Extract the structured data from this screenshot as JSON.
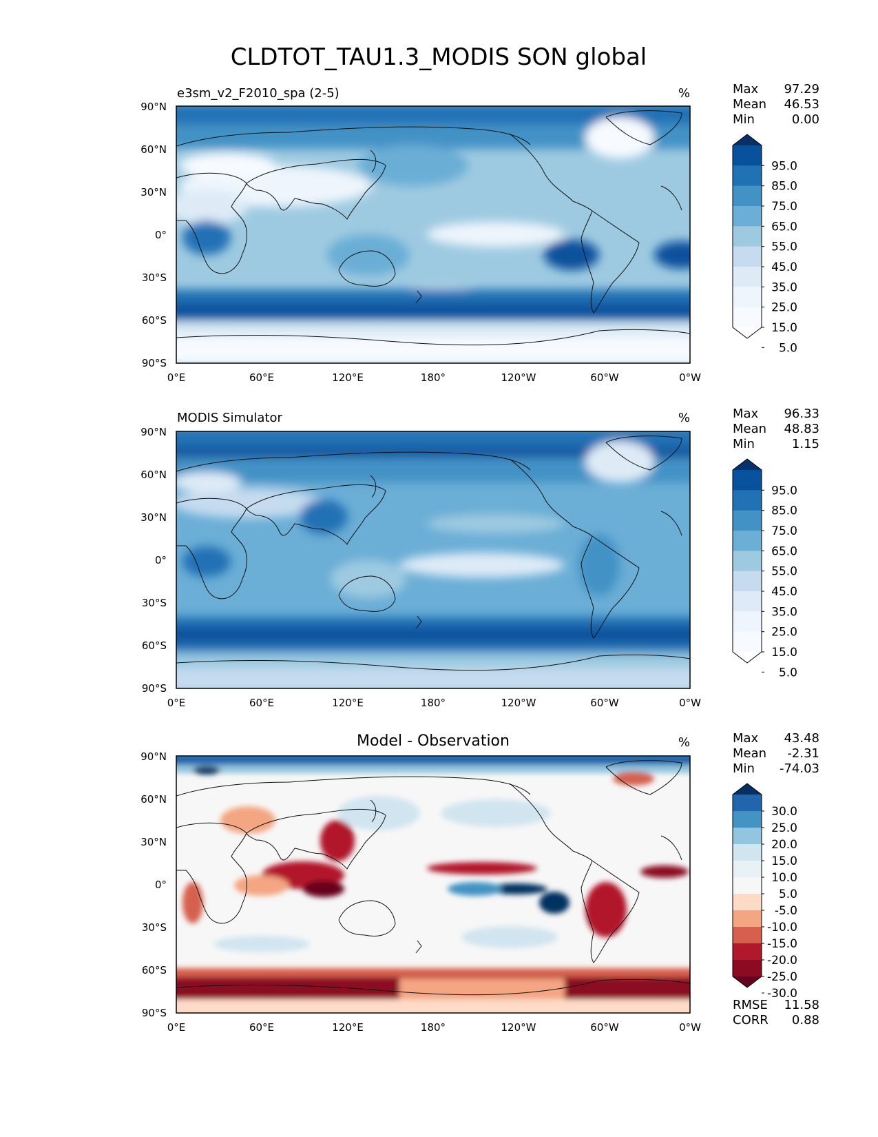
{
  "title": "CLDTOT_TAU1.3_MODIS SON global",
  "axes": {
    "lat_ticks": [
      "90°N",
      "60°N",
      "30°N",
      "0°",
      "30°S",
      "60°S",
      "90°S"
    ],
    "lon_ticks": [
      "0°E",
      "60°E",
      "120°E",
      "180°",
      "120°W",
      "60°W",
      "0°W"
    ]
  },
  "panels": [
    {
      "id": "model",
      "title_left": "e3sm_v2_F2010_spa (2-5)",
      "title_center": "",
      "units": "%",
      "stats": [
        {
          "label": "Max",
          "value": "97.29"
        },
        {
          "label": "Mean",
          "value": "46.53"
        },
        {
          "label": "Min",
          "value": "0.00"
        }
      ],
      "colorbar": {
        "scheme": "blues",
        "labels": [
          "95.0",
          "85.0",
          "75.0",
          "65.0",
          "55.0",
          "45.0",
          "35.0",
          "25.0",
          "15.0",
          "5.0"
        ],
        "colors": [
          "#08306b",
          "#08519c",
          "#2171b5",
          "#4292c6",
          "#6baed6",
          "#9ecae1",
          "#c6dbef",
          "#deebf7",
          "#eef5fc",
          "#f7fbff",
          "#ffffff"
        ]
      },
      "footer": []
    },
    {
      "id": "obs",
      "title_left": "MODIS Simulator",
      "title_center": "",
      "units": "%",
      "stats": [
        {
          "label": "Max",
          "value": "96.33"
        },
        {
          "label": "Mean",
          "value": "48.83"
        },
        {
          "label": "Min",
          "value": "1.15"
        }
      ],
      "colorbar": {
        "scheme": "blues",
        "labels": [
          "95.0",
          "85.0",
          "75.0",
          "65.0",
          "55.0",
          "45.0",
          "35.0",
          "25.0",
          "15.0",
          "5.0"
        ],
        "colors": [
          "#08306b",
          "#08519c",
          "#2171b5",
          "#4292c6",
          "#6baed6",
          "#9ecae1",
          "#c6dbef",
          "#deebf7",
          "#eef5fc",
          "#f7fbff",
          "#ffffff"
        ]
      },
      "footer": []
    },
    {
      "id": "diff",
      "title_left": "",
      "title_center": "Model - Observation",
      "units": "%",
      "stats": [
        {
          "label": "Max",
          "value": "43.48"
        },
        {
          "label": "Mean",
          "value": "-2.31"
        },
        {
          "label": "Min",
          "value": "-74.03"
        }
      ],
      "colorbar": {
        "scheme": "rdbu",
        "labels": [
          "30.0",
          "25.0",
          "20.0",
          "15.0",
          "10.0",
          "5.0",
          "-5.0",
          "-10.0",
          "-15.0",
          "-20.0",
          "-25.0",
          "-30.0"
        ],
        "colors": [
          "#053061",
          "#2166ac",
          "#4393c3",
          "#92c5de",
          "#d1e5f0",
          "#e8f1f6",
          "#f7f7f7",
          "#fddbc7",
          "#f4a582",
          "#d6604d",
          "#b2182b",
          "#8b0b22",
          "#67001f"
        ]
      },
      "footer": [
        {
          "label": "RMSE",
          "value": "11.58"
        },
        {
          "label": "CORR",
          "value": "0.88"
        }
      ]
    }
  ]
}
